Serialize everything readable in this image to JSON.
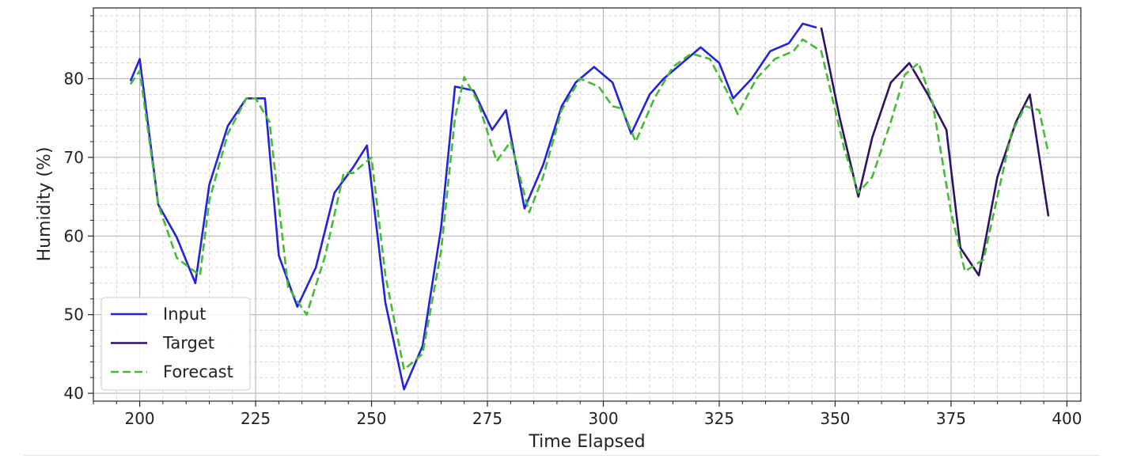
{
  "chart_data": {
    "type": "line",
    "title": "",
    "xlabel": "Time Elapsed",
    "ylabel": "Humidity (%)",
    "xlim": [
      190,
      403
    ],
    "ylim": [
      39,
      89
    ],
    "xticks": [
      200,
      225,
      250,
      275,
      300,
      325,
      350,
      375,
      400
    ],
    "yticks": [
      40,
      50,
      60,
      70,
      80
    ],
    "grid": true,
    "minor_grid": true,
    "legend_position": "lower-left",
    "series": [
      {
        "name": "Input",
        "color": "#2222dd",
        "style": "solid",
        "points": [
          [
            198,
            79.7
          ],
          [
            200,
            82.5
          ],
          [
            204,
            64.0
          ],
          [
            208,
            59.8
          ],
          [
            212,
            54.0
          ],
          [
            215,
            66.5
          ],
          [
            219,
            74.0
          ],
          [
            223,
            77.5
          ],
          [
            227,
            77.5
          ],
          [
            230,
            57.5
          ],
          [
            234,
            51.0
          ],
          [
            238,
            56.0
          ],
          [
            242,
            65.5
          ],
          [
            246,
            68.7
          ],
          [
            249,
            71.5
          ],
          [
            253,
            51.5
          ],
          [
            257,
            40.5
          ],
          [
            261,
            46.0
          ],
          [
            265,
            61.0
          ],
          [
            268,
            79.0
          ],
          [
            272,
            78.5
          ],
          [
            276,
            73.5
          ],
          [
            279,
            76.0
          ],
          [
            283,
            63.5
          ],
          [
            287,
            69.0
          ],
          [
            291,
            76.5
          ],
          [
            294,
            79.5
          ],
          [
            298,
            81.5
          ],
          [
            302,
            79.5
          ],
          [
            306,
            73.0
          ],
          [
            310,
            78.0
          ],
          [
            313,
            80.0
          ],
          [
            317,
            82.0
          ],
          [
            321,
            84.0
          ],
          [
            325,
            82.0
          ],
          [
            328,
            77.5
          ],
          [
            332,
            80.0
          ],
          [
            336,
            83.5
          ],
          [
            340,
            84.5
          ],
          [
            343,
            87.0
          ],
          [
            346,
            86.5
          ]
        ]
      },
      {
        "name": "Target",
        "color": "#2d1166",
        "style": "solid",
        "points": [
          [
            347,
            86.5
          ],
          [
            351,
            75.0
          ],
          [
            355,
            65.0
          ],
          [
            358,
            72.5
          ],
          [
            362,
            79.5
          ],
          [
            366,
            82.0
          ],
          [
            370,
            78.0
          ],
          [
            374,
            73.5
          ],
          [
            377,
            58.5
          ],
          [
            381,
            55.0
          ],
          [
            385,
            67.5
          ],
          [
            389,
            74.5
          ],
          [
            392,
            78.0
          ],
          [
            396,
            62.5
          ]
        ]
      },
      {
        "name": "Forecast",
        "color": "#44bb33",
        "style": "dashed",
        "points": [
          [
            198,
            79.3
          ],
          [
            200,
            81.0
          ],
          [
            204,
            64.0
          ],
          [
            208,
            57.2
          ],
          [
            210,
            56.3
          ],
          [
            213,
            55.0
          ],
          [
            215,
            64.5
          ],
          [
            219,
            73.0
          ],
          [
            223,
            77.5
          ],
          [
            225,
            77.5
          ],
          [
            228,
            74.5
          ],
          [
            232,
            53.5
          ],
          [
            236,
            50.0
          ],
          [
            240,
            57.5
          ],
          [
            244,
            68.0
          ],
          [
            246,
            68.0
          ],
          [
            250,
            70.0
          ],
          [
            253,
            55.0
          ],
          [
            257,
            43.0
          ],
          [
            261,
            45.0
          ],
          [
            265,
            58.0
          ],
          [
            268,
            75.0
          ],
          [
            270,
            80.2
          ],
          [
            273,
            77.0
          ],
          [
            277,
            69.5
          ],
          [
            280,
            72.0
          ],
          [
            284,
            63.0
          ],
          [
            287,
            67.5
          ],
          [
            291,
            76.0
          ],
          [
            295,
            80.0
          ],
          [
            299,
            79.0
          ],
          [
            302,
            76.5
          ],
          [
            304,
            76.2
          ],
          [
            307,
            72.0
          ],
          [
            311,
            77.5
          ],
          [
            315,
            81.5
          ],
          [
            319,
            83.2
          ],
          [
            323,
            82.5
          ],
          [
            327,
            78.0
          ],
          [
            329,
            75.5
          ],
          [
            333,
            80.0
          ],
          [
            337,
            82.5
          ],
          [
            341,
            83.5
          ],
          [
            343,
            85.0
          ],
          [
            347,
            83.5
          ],
          [
            352,
            71.0
          ],
          [
            355,
            65.5
          ],
          [
            358,
            67.5
          ],
          [
            362,
            74.5
          ],
          [
            365,
            80.5
          ],
          [
            368,
            82.0
          ],
          [
            371,
            77.0
          ],
          [
            375,
            63.0
          ],
          [
            378,
            55.5
          ],
          [
            382,
            57.0
          ],
          [
            385,
            65.0
          ],
          [
            388,
            73.0
          ],
          [
            391,
            76.5
          ],
          [
            394,
            76.0
          ],
          [
            396,
            70.5
          ]
        ]
      }
    ]
  }
}
